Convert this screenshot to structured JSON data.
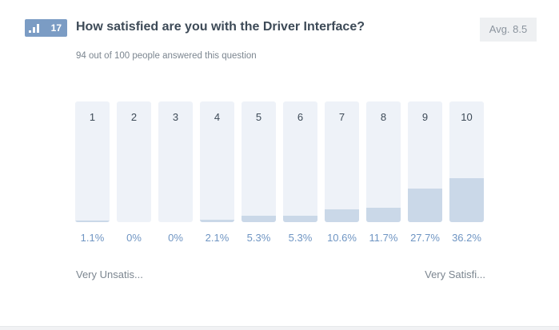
{
  "question": {
    "number": "17",
    "type_icon": "bar-chart-icon",
    "title": "How satisfied are you with the Driver Interface?",
    "subtitle": "94 out of 100 people answered this question",
    "average_label": "Avg. 8.5"
  },
  "scale": {
    "low_label": "Very Unsatis...",
    "high_label": "Very Satisfi..."
  },
  "colors": {
    "badge": "#7b9cc4",
    "bar_background": "#eef2f8",
    "bar_fill": "#cad8e8",
    "percent_text": "#6f95c3"
  },
  "chart_data": {
    "type": "bar",
    "categories": [
      "1",
      "2",
      "3",
      "4",
      "5",
      "6",
      "7",
      "8",
      "9",
      "10"
    ],
    "values": [
      1.1,
      0,
      0,
      2.1,
      5.3,
      5.3,
      10.6,
      11.7,
      27.7,
      36.2
    ],
    "value_labels": [
      "1.1%",
      "0%",
      "0%",
      "2.1%",
      "5.3%",
      "5.3%",
      "10.6%",
      "11.7%",
      "27.7%",
      "36.2%"
    ],
    "ylim": [
      0,
      100
    ],
    "grid": false,
    "legend": "none"
  }
}
